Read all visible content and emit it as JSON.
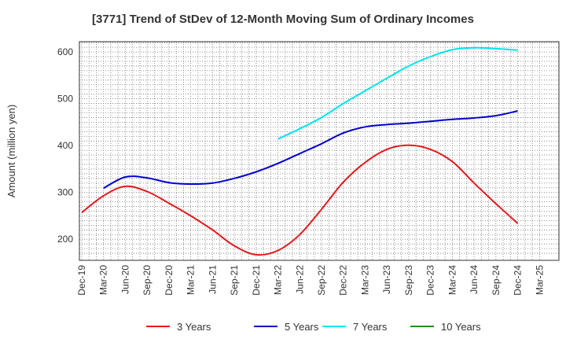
{
  "chart_data": {
    "type": "line",
    "title": "[3771]  Trend of StDev of 12-Month Moving Sum of Ordinary Incomes",
    "xlabel": "",
    "ylabel": "Amount (million yen)",
    "ylim": [
      155,
      622
    ],
    "yticks": [
      200,
      300,
      400,
      500,
      600
    ],
    "x_tick_labels": [
      "Dec-19",
      "Mar-20",
      "Jun-20",
      "Sep-20",
      "Dec-20",
      "Mar-21",
      "Jun-21",
      "Sep-21",
      "Dec-21",
      "Mar-22",
      "Jun-22",
      "Sep-22",
      "Dec-22",
      "Mar-23",
      "Jun-23",
      "Sep-23",
      "Dec-23",
      "Mar-24",
      "Jun-24",
      "Sep-24",
      "Dec-24",
      "Mar-25"
    ],
    "grid": true,
    "legend_position": "bottom",
    "series": [
      {
        "name": "3 Years",
        "color": "#e31a1c",
        "points": [
          [
            "Dec-19",
            257
          ],
          [
            "Mar-20",
            293
          ],
          [
            "Jun-20",
            313
          ],
          [
            "Sep-20",
            302
          ],
          [
            "Dec-20",
            277
          ],
          [
            "Mar-21",
            250
          ],
          [
            "Jun-21",
            220
          ],
          [
            "Sep-21",
            186
          ],
          [
            "Dec-21",
            167
          ],
          [
            "Mar-22",
            176
          ],
          [
            "Jun-22",
            210
          ],
          [
            "Sep-22",
            264
          ],
          [
            "Dec-22",
            322
          ],
          [
            "Mar-23",
            364
          ],
          [
            "Jun-23",
            392
          ],
          [
            "Sep-23",
            401
          ],
          [
            "Dec-23",
            392
          ],
          [
            "Mar-24",
            366
          ],
          [
            "Jun-24",
            320
          ],
          [
            "Sep-24",
            276
          ],
          [
            "Dec-24",
            234
          ]
        ]
      },
      {
        "name": "5 Years",
        "color": "#0000cd",
        "points": [
          [
            "Mar-20",
            309
          ],
          [
            "Jun-20",
            333
          ],
          [
            "Sep-20",
            331
          ],
          [
            "Dec-20",
            321
          ],
          [
            "Mar-21",
            318
          ],
          [
            "Jun-21",
            320
          ],
          [
            "Sep-21",
            330
          ],
          [
            "Dec-21",
            344
          ],
          [
            "Mar-22",
            362
          ],
          [
            "Jun-22",
            383
          ],
          [
            "Sep-22",
            404
          ],
          [
            "Dec-22",
            427
          ],
          [
            "Mar-23",
            440
          ],
          [
            "Jun-23",
            445
          ],
          [
            "Sep-23",
            448
          ],
          [
            "Dec-23",
            452
          ],
          [
            "Mar-24",
            456
          ],
          [
            "Jun-24",
            459
          ],
          [
            "Sep-24",
            464
          ],
          [
            "Dec-24",
            474
          ]
        ]
      },
      {
        "name": "7 Years",
        "color": "#00e5ee",
        "points": [
          [
            "Mar-22",
            414
          ],
          [
            "Jun-22",
            436
          ],
          [
            "Sep-22",
            460
          ],
          [
            "Dec-22",
            490
          ],
          [
            "Mar-23",
            517
          ],
          [
            "Jun-23",
            544
          ],
          [
            "Sep-23",
            570
          ],
          [
            "Dec-23",
            590
          ],
          [
            "Mar-24",
            605
          ],
          [
            "Jun-24",
            609
          ],
          [
            "Sep-24",
            607
          ],
          [
            "Dec-24",
            604
          ]
        ]
      },
      {
        "name": "10 Years",
        "color": "#228b22",
        "points": []
      }
    ]
  }
}
